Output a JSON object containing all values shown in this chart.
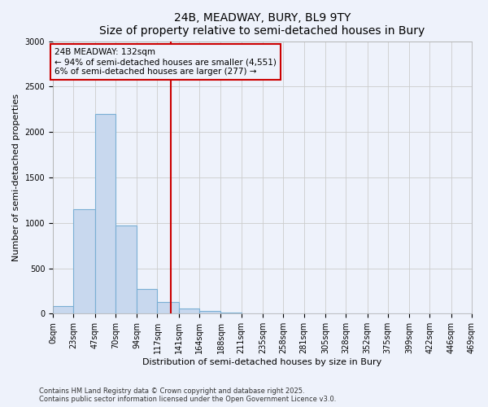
{
  "title": "24B, MEADWAY, BURY, BL9 9TY",
  "subtitle": "Size of property relative to semi-detached houses in Bury",
  "xlabel": "Distribution of semi-detached houses by size in Bury",
  "ylabel": "Number of semi-detached properties",
  "footer_line1": "Contains HM Land Registry data © Crown copyright and database right 2025.",
  "footer_line2": "Contains public sector information licensed under the Open Government Licence v3.0.",
  "property_size": 132,
  "annotation_title": "24B MEADWAY: 132sqm",
  "annotation_line2": "← 94% of semi-detached houses are smaller (4,551)",
  "annotation_line3": "6% of semi-detached houses are larger (277) →",
  "bin_edges": [
    0,
    23,
    47,
    70,
    94,
    117,
    141,
    164,
    188,
    211,
    235,
    258,
    281,
    305,
    328,
    352,
    375,
    399,
    422,
    446,
    469
  ],
  "bin_labels": [
    "0sqm",
    "23sqm",
    "47sqm",
    "70sqm",
    "94sqm",
    "117sqm",
    "141sqm",
    "164sqm",
    "188sqm",
    "211sqm",
    "235sqm",
    "258sqm",
    "281sqm",
    "305sqm",
    "328sqm",
    "352sqm",
    "375sqm",
    "399sqm",
    "422sqm",
    "446sqm",
    "469sqm"
  ],
  "counts": [
    80,
    1150,
    2200,
    970,
    270,
    130,
    60,
    30,
    10,
    5,
    2,
    2,
    1,
    0,
    0,
    0,
    0,
    0,
    0,
    0
  ],
  "bar_color": "#c8d8ee",
  "bar_edge_color": "#7aafd4",
  "vline_color": "#cc0000",
  "vline_x": 132,
  "annotation_box_color": "#cc0000",
  "grid_color": "#cccccc",
  "background_color": "#eef2fb",
  "ylim": [
    0,
    3000
  ],
  "yticks": [
    0,
    500,
    1000,
    1500,
    2000,
    2500,
    3000
  ],
  "title_fontsize": 10,
  "subtitle_fontsize": 9,
  "ylabel_fontsize": 8,
  "xlabel_fontsize": 8,
  "tick_fontsize": 7,
  "annotation_fontsize": 7.5,
  "footer_fontsize": 6
}
